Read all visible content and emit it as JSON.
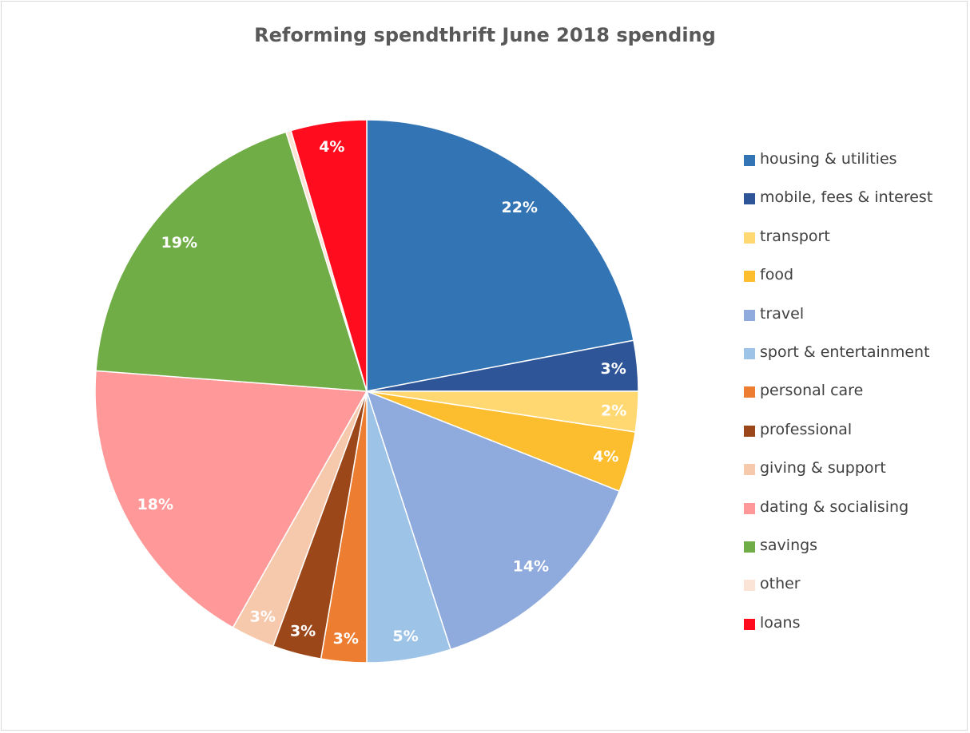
{
  "chart_data": {
    "type": "pie",
    "title": "Reforming spendthrift June 2018 spending",
    "legend_position": "right",
    "start_angle": "top, clockwise",
    "slices": [
      {
        "name": "housing & utilities",
        "value": 22,
        "label": "22%",
        "color": "#3274b4"
      },
      {
        "name": "mobile, fees & interest",
        "value": 3,
        "label": "3%",
        "color": "#2e5597"
      },
      {
        "name": "transport",
        "value": 2.4,
        "label": "2%",
        "color": "#ffd871"
      },
      {
        "name": "food",
        "value": 3.6,
        "label": "4%",
        "color": "#fcbd2e"
      },
      {
        "name": "travel",
        "value": 14,
        "label": "14%",
        "color": "#8faadc"
      },
      {
        "name": "sport & entertainment",
        "value": 5,
        "label": "5%",
        "color": "#9dc3e6"
      },
      {
        "name": "personal care",
        "value": 2.7,
        "label": "3%",
        "color": "#ed7d31"
      },
      {
        "name": "professional",
        "value": 2.9,
        "label": "3%",
        "color": "#9c4719"
      },
      {
        "name": "giving & support",
        "value": 2.6,
        "label": "3%",
        "color": "#f6c9ad"
      },
      {
        "name": "dating & socialising",
        "value": 18,
        "label": "18%",
        "color": "#ff9999"
      },
      {
        "name": "savings",
        "value": 19,
        "label": "19%",
        "color": "#70ad47"
      },
      {
        "name": "other",
        "value": 0.3,
        "label": "",
        "color": "#fbe4d6"
      },
      {
        "name": "loans",
        "value": 4.5,
        "label": "4%",
        "color": "#ff0d1e"
      }
    ]
  }
}
